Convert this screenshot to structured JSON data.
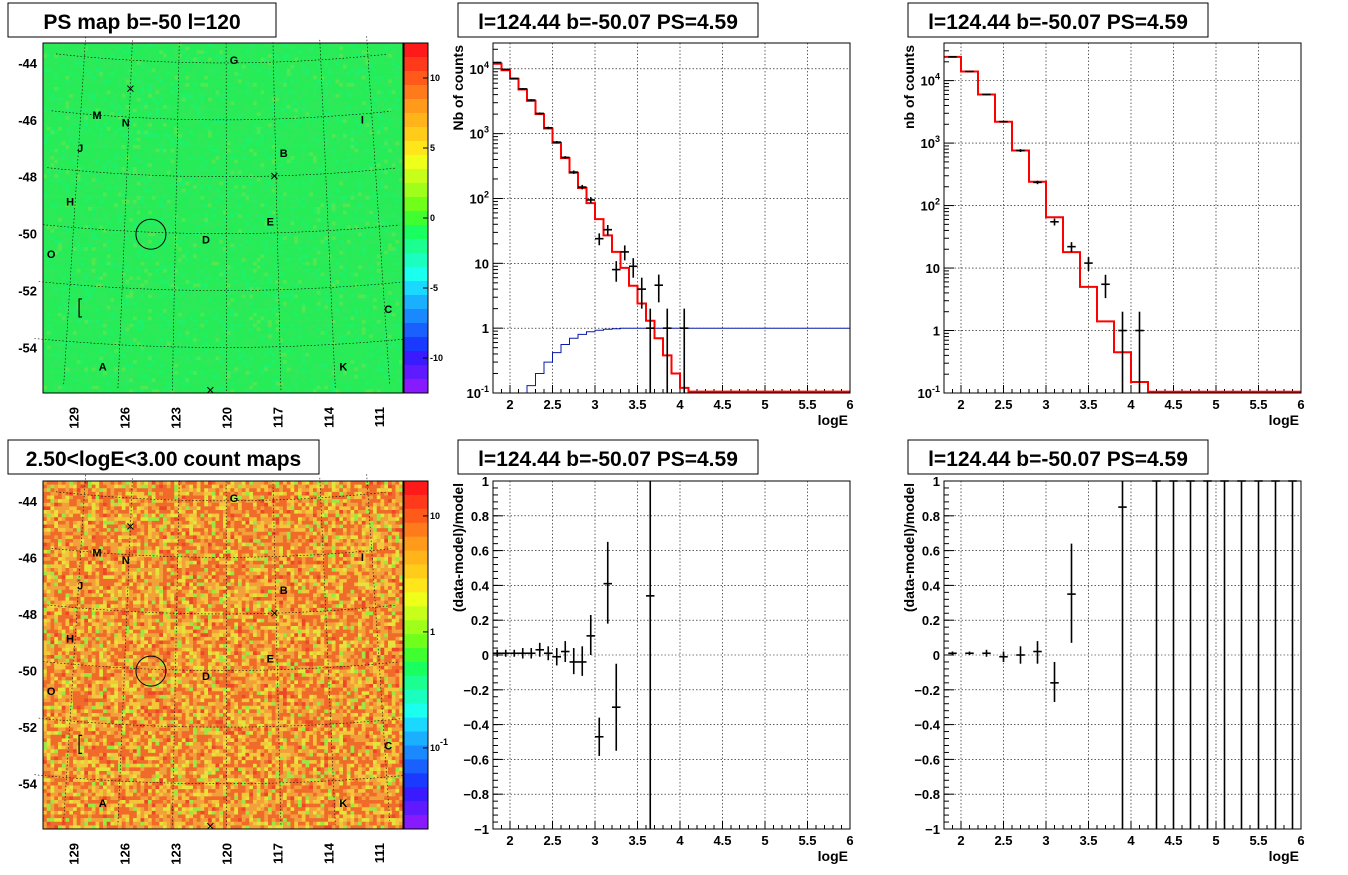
{
  "chart_data": [
    {
      "type": "heatmap",
      "title": "PS map b=-50 l=120",
      "ylabels": [
        "-44",
        "-46",
        "-48",
        "-50",
        "-52",
        "-54"
      ],
      "yvals": [
        -44,
        -46,
        -48,
        -50,
        -52,
        -54
      ],
      "xlabels": [
        "129",
        "126",
        "123",
        "120",
        "117",
        "114",
        "111"
      ],
      "xvals": [
        129,
        126,
        123,
        120,
        117,
        114,
        111
      ],
      "colorbar": {
        "labels": [
          "10",
          "5",
          "0",
          "-5",
          "-10"
        ],
        "values": [
          10,
          5,
          0,
          -5,
          -10
        ],
        "range": [
          -12.5,
          12.5
        ],
        "scale": "linear"
      },
      "base_color": "#22ee55",
      "sources": [
        {
          "name": "G",
          "l": 119.5,
          "b": -43.9
        },
        {
          "name": "M",
          "l": 128.0,
          "b": -46.0
        },
        {
          "name": "N",
          "l": 126.2,
          "b": -46.2
        },
        {
          "name": "I",
          "l": 111.6,
          "b": -46.2
        },
        {
          "name": "J",
          "l": 128.9,
          "b": -47.2
        },
        {
          "name": "B",
          "l": 116.5,
          "b": -47.2
        },
        {
          "name": "H",
          "l": 129.3,
          "b": -49.1
        },
        {
          "name": "E",
          "l": 117.4,
          "b": -49.6
        },
        {
          "name": "D",
          "l": 121.2,
          "b": -50.2
        },
        {
          "name": "O",
          "l": 130.2,
          "b": -51.0
        },
        {
          "name": "C",
          "l": 110.8,
          "b": -52.9
        },
        {
          "name": "A",
          "l": 126.9,
          "b": -54.8
        },
        {
          "name": "K",
          "l": 113.5,
          "b": -54.8
        }
      ]
    },
    {
      "type": "line",
      "title": "l=124.44 b=-50.07 PS=4.59",
      "xlabel": "logE",
      "ylabel": "Nb of counts",
      "xlim": [
        1.8,
        6
      ],
      "ylim": [
        0.1,
        25000
      ],
      "yscale": "log",
      "xticks": [
        "2",
        "2.5",
        "3",
        "3.5",
        "4",
        "4.5",
        "5",
        "5.5",
        "6"
      ],
      "yticks": [
        {
          "v": 0.1,
          "t": "10^-1"
        },
        {
          "v": 1,
          "t": "1"
        },
        {
          "v": 10,
          "t": "10"
        },
        {
          "v": 100,
          "t": "10^2"
        },
        {
          "v": 1000,
          "t": "10^3"
        },
        {
          "v": 10000,
          "t": "10^4"
        }
      ],
      "model": [
        {
          "x0": 1.8,
          "x1": 1.9,
          "y": 12000
        },
        {
          "x0": 1.9,
          "x1": 2.0,
          "y": 9500
        },
        {
          "x0": 2.0,
          "x1": 2.1,
          "y": 7000
        },
        {
          "x0": 2.1,
          "x1": 2.2,
          "y": 4800
        },
        {
          "x0": 2.2,
          "x1": 2.3,
          "y": 3200
        },
        {
          "x0": 2.3,
          "x1": 2.4,
          "y": 2000
        },
        {
          "x0": 2.4,
          "x1": 2.5,
          "y": 1200
        },
        {
          "x0": 2.5,
          "x1": 2.6,
          "y": 720
        },
        {
          "x0": 2.6,
          "x1": 2.7,
          "y": 420
        },
        {
          "x0": 2.7,
          "x1": 2.8,
          "y": 250
        },
        {
          "x0": 2.8,
          "x1": 2.9,
          "y": 145
        },
        {
          "x0": 2.9,
          "x1": 3.0,
          "y": 85
        },
        {
          "x0": 3.0,
          "x1": 3.1,
          "y": 48
        },
        {
          "x0": 3.1,
          "x1": 3.2,
          "y": 27
        },
        {
          "x0": 3.2,
          "x1": 3.3,
          "y": 15
        },
        {
          "x0": 3.3,
          "x1": 3.4,
          "y": 8.5
        },
        {
          "x0": 3.4,
          "x1": 3.5,
          "y": 4.5
        },
        {
          "x0": 3.5,
          "x1": 3.6,
          "y": 2.4
        },
        {
          "x0": 3.6,
          "x1": 3.7,
          "y": 1.3
        },
        {
          "x0": 3.7,
          "x1": 3.8,
          "y": 0.7
        },
        {
          "x0": 3.8,
          "x1": 3.9,
          "y": 0.38
        },
        {
          "x0": 3.9,
          "x1": 4.0,
          "y": 0.2
        },
        {
          "x0": 4.0,
          "x1": 4.1,
          "y": 0.12
        },
        {
          "x0": 4.1,
          "x1": 6.0,
          "y": 0.105
        }
      ],
      "efficiency": [
        {
          "x0": 1.8,
          "x1": 2.2,
          "y": 0.09
        },
        {
          "x0": 2.2,
          "x1": 2.3,
          "y": 0.13
        },
        {
          "x0": 2.3,
          "x1": 2.4,
          "y": 0.2
        },
        {
          "x0": 2.4,
          "x1": 2.5,
          "y": 0.3
        },
        {
          "x0": 2.5,
          "x1": 2.6,
          "y": 0.42
        },
        {
          "x0": 2.6,
          "x1": 2.7,
          "y": 0.56
        },
        {
          "x0": 2.7,
          "x1": 2.8,
          "y": 0.7
        },
        {
          "x0": 2.8,
          "x1": 2.9,
          "y": 0.8
        },
        {
          "x0": 2.9,
          "x1": 3.0,
          "y": 0.88
        },
        {
          "x0": 3.0,
          "x1": 3.1,
          "y": 0.93
        },
        {
          "x0": 3.1,
          "x1": 3.2,
          "y": 0.96
        },
        {
          "x0": 3.2,
          "x1": 3.3,
          "y": 0.98
        },
        {
          "x0": 3.3,
          "x1": 6.0,
          "y": 1.0
        }
      ],
      "data": [
        {
          "x": 1.85,
          "y": 12500,
          "ylo": 12200,
          "yhi": 12800
        },
        {
          "x": 1.95,
          "y": 9800,
          "ylo": 9600,
          "yhi": 10000
        },
        {
          "x": 2.05,
          "y": 7100,
          "ylo": 6950,
          "yhi": 7250
        },
        {
          "x": 2.15,
          "y": 4900,
          "ylo": 4780,
          "yhi": 5020
        },
        {
          "x": 2.25,
          "y": 3300,
          "ylo": 3200,
          "yhi": 3400
        },
        {
          "x": 2.35,
          "y": 2050,
          "ylo": 1980,
          "yhi": 2120
        },
        {
          "x": 2.45,
          "y": 1230,
          "ylo": 1180,
          "yhi": 1280
        },
        {
          "x": 2.55,
          "y": 740,
          "ylo": 710,
          "yhi": 770
        },
        {
          "x": 2.65,
          "y": 430,
          "ylo": 410,
          "yhi": 450
        },
        {
          "x": 2.75,
          "y": 255,
          "ylo": 240,
          "yhi": 270
        },
        {
          "x": 2.85,
          "y": 150,
          "ylo": 138,
          "yhi": 162
        },
        {
          "x": 2.95,
          "y": 95,
          "ylo": 85,
          "yhi": 105
        },
        {
          "x": 3.05,
          "y": 24,
          "ylo": 19,
          "yhi": 29
        },
        {
          "x": 3.15,
          "y": 33,
          "ylo": 27,
          "yhi": 39
        },
        {
          "x": 3.25,
          "y": 8,
          "ylo": 5.2,
          "yhi": 10.8
        },
        {
          "x": 3.35,
          "y": 15,
          "ylo": 11.1,
          "yhi": 18.9
        },
        {
          "x": 3.45,
          "y": 9,
          "ylo": 6,
          "yhi": 12
        },
        {
          "x": 3.55,
          "y": 4,
          "ylo": 2,
          "yhi": 6
        },
        {
          "x": 3.65,
          "y": 1,
          "ylo": 0.1,
          "yhi": 2
        },
        {
          "x": 3.75,
          "y": 4.6,
          "ylo": 2.5,
          "yhi": 6.7
        },
        {
          "x": 3.85,
          "y": 1,
          "ylo": 0.1,
          "yhi": 2
        },
        {
          "x": 4.05,
          "y": 1,
          "ylo": 0.1,
          "yhi": 2
        }
      ]
    },
    {
      "type": "line",
      "title": "l=124.44 b=-50.07 PS=4.59",
      "xlabel": "logE",
      "ylabel": "nb of counts",
      "xlim": [
        1.8,
        6
      ],
      "ylim": [
        0.1,
        40000
      ],
      "yscale": "log",
      "xticks": [
        "2",
        "2.5",
        "3",
        "3.5",
        "4",
        "4.5",
        "5",
        "5.5",
        "6"
      ],
      "yticks": [
        {
          "v": 0.1,
          "t": "10^-1"
        },
        {
          "v": 1,
          "t": "1"
        },
        {
          "v": 10,
          "t": "10"
        },
        {
          "v": 100,
          "t": "10^2"
        },
        {
          "v": 1000,
          "t": "10^3"
        },
        {
          "v": 10000,
          "t": "10^4"
        }
      ],
      "model": [
        {
          "x0": 1.8,
          "x1": 2.0,
          "y": 24000
        },
        {
          "x0": 2.0,
          "x1": 2.2,
          "y": 14000
        },
        {
          "x0": 2.2,
          "x1": 2.4,
          "y": 6000
        },
        {
          "x0": 2.4,
          "x1": 2.6,
          "y": 2200
        },
        {
          "x0": 2.6,
          "x1": 2.8,
          "y": 760
        },
        {
          "x0": 2.8,
          "x1": 3.0,
          "y": 240
        },
        {
          "x0": 3.0,
          "x1": 3.2,
          "y": 65
        },
        {
          "x0": 3.2,
          "x1": 3.4,
          "y": 18
        },
        {
          "x0": 3.4,
          "x1": 3.6,
          "y": 5
        },
        {
          "x0": 3.6,
          "x1": 3.8,
          "y": 1.4
        },
        {
          "x0": 3.8,
          "x1": 4.0,
          "y": 0.45
        },
        {
          "x0": 4.0,
          "x1": 4.2,
          "y": 0.15
        },
        {
          "x0": 4.2,
          "x1": 6.0,
          "y": 0.105
        }
      ],
      "efficiency": [],
      "data": [
        {
          "x": 1.9,
          "y": 24000,
          "ylo": 23600,
          "yhi": 24400
        },
        {
          "x": 2.1,
          "y": 14000,
          "ylo": 13700,
          "yhi": 14300
        },
        {
          "x": 2.3,
          "y": 6000,
          "ylo": 5850,
          "yhi": 6150
        },
        {
          "x": 2.5,
          "y": 2200,
          "ylo": 2130,
          "yhi": 2270
        },
        {
          "x": 2.7,
          "y": 760,
          "ylo": 720,
          "yhi": 800
        },
        {
          "x": 2.9,
          "y": 235,
          "ylo": 220,
          "yhi": 250
        },
        {
          "x": 3.1,
          "y": 55,
          "ylo": 48,
          "yhi": 62
        },
        {
          "x": 3.3,
          "y": 22,
          "ylo": 18,
          "yhi": 26
        },
        {
          "x": 3.5,
          "y": 12,
          "ylo": 9,
          "yhi": 15
        },
        {
          "x": 3.7,
          "y": 5.5,
          "ylo": 3.3,
          "yhi": 7.8
        },
        {
          "x": 3.9,
          "y": 1,
          "ylo": 0.1,
          "yhi": 2
        },
        {
          "x": 4.1,
          "y": 1,
          "ylo": 0.1,
          "yhi": 2
        }
      ]
    },
    {
      "type": "heatmap",
      "title": "2.50<logE<3.00 count maps",
      "ylabels": [
        "-44",
        "-46",
        "-48",
        "-50",
        "-52",
        "-54"
      ],
      "yvals": [
        -44,
        -46,
        -48,
        -50,
        -52,
        -54
      ],
      "xlabels": [
        "129",
        "126",
        "123",
        "120",
        "117",
        "114",
        "111"
      ],
      "xvals": [
        129,
        126,
        123,
        120,
        117,
        114,
        111
      ],
      "colorbar": {
        "labels": [
          "10",
          "1",
          "10^-1"
        ],
        "values": [
          10,
          1,
          0.1
        ],
        "range": [
          0.02,
          20
        ],
        "scale": "log"
      },
      "base_color": "#f0b040",
      "sources": [
        {
          "name": "G",
          "l": 119.5,
          "b": -43.9
        },
        {
          "name": "M",
          "l": 128.0,
          "b": -46.0
        },
        {
          "name": "N",
          "l": 126.2,
          "b": -46.2
        },
        {
          "name": "I",
          "l": 111.6,
          "b": -46.2
        },
        {
          "name": "J",
          "l": 128.9,
          "b": -47.2
        },
        {
          "name": "B",
          "l": 116.5,
          "b": -47.2
        },
        {
          "name": "H",
          "l": 129.3,
          "b": -49.1
        },
        {
          "name": "E",
          "l": 117.4,
          "b": -49.6
        },
        {
          "name": "D",
          "l": 121.2,
          "b": -50.2
        },
        {
          "name": "O",
          "l": 130.2,
          "b": -51.0
        },
        {
          "name": "C",
          "l": 110.8,
          "b": -52.9
        },
        {
          "name": "A",
          "l": 126.9,
          "b": -54.8
        },
        {
          "name": "K",
          "l": 113.5,
          "b": -54.8
        }
      ]
    },
    {
      "type": "scatter",
      "title": "l=124.44 b=-50.07 PS=4.59",
      "xlabel": "logE",
      "ylabel": "(data-model)/model",
      "xlim": [
        1.8,
        6
      ],
      "ylim": [
        -1,
        1
      ],
      "yscale": "linear",
      "xticks": [
        "2",
        "2.5",
        "3",
        "3.5",
        "4",
        "4.5",
        "5",
        "5.5",
        "6"
      ],
      "yticks": [
        {
          "v": -1,
          "t": "−1"
        },
        {
          "v": -0.8,
          "t": "−0.8"
        },
        {
          "v": -0.6,
          "t": "−0.6"
        },
        {
          "v": -0.4,
          "t": "−0.4"
        },
        {
          "v": -0.2,
          "t": "−0.2"
        },
        {
          "v": 0,
          "t": "0"
        },
        {
          "v": 0.2,
          "t": "0.2"
        },
        {
          "v": 0.4,
          "t": "0.4"
        },
        {
          "v": 0.6,
          "t": "0.6"
        },
        {
          "v": 0.8,
          "t": "0.8"
        },
        {
          "v": 1,
          "t": "1"
        }
      ],
      "data": [
        {
          "x": 1.85,
          "y": 0.01,
          "ylo": -0.01,
          "yhi": 0.03
        },
        {
          "x": 1.95,
          "y": 0.01,
          "ylo": -0.01,
          "yhi": 0.03
        },
        {
          "x": 2.05,
          "y": 0.01,
          "ylo": -0.01,
          "yhi": 0.03
        },
        {
          "x": 2.15,
          "y": 0.01,
          "ylo": -0.02,
          "yhi": 0.04
        },
        {
          "x": 2.25,
          "y": 0.01,
          "ylo": -0.02,
          "yhi": 0.04
        },
        {
          "x": 2.35,
          "y": 0.03,
          "ylo": -0.01,
          "yhi": 0.07
        },
        {
          "x": 2.45,
          "y": 0.01,
          "ylo": -0.03,
          "yhi": 0.05
        },
        {
          "x": 2.55,
          "y": -0.01,
          "ylo": -0.06,
          "yhi": 0.04
        },
        {
          "x": 2.65,
          "y": 0.02,
          "ylo": -0.04,
          "yhi": 0.08
        },
        {
          "x": 2.75,
          "y": -0.04,
          "ylo": -0.11,
          "yhi": 0.04
        },
        {
          "x": 2.85,
          "y": -0.04,
          "ylo": -0.12,
          "yhi": 0.05
        },
        {
          "x": 2.95,
          "y": 0.11,
          "ylo": 0.0,
          "yhi": 0.23
        },
        {
          "x": 3.05,
          "y": -0.47,
          "ylo": -0.58,
          "yhi": -0.36
        },
        {
          "x": 3.15,
          "y": 0.41,
          "ylo": 0.18,
          "yhi": 0.65
        },
        {
          "x": 3.25,
          "y": -0.3,
          "ylo": -0.55,
          "yhi": -0.05
        },
        {
          "x": 3.65,
          "y": 0.34,
          "ylo": -1.0,
          "yhi": 1.0
        }
      ]
    },
    {
      "type": "scatter",
      "title": "l=124.44 b=-50.07 PS=4.59",
      "xlabel": "logE",
      "ylabel": "(data-model)/model",
      "xlim": [
        1.8,
        6
      ],
      "ylim": [
        -1,
        1
      ],
      "yscale": "linear",
      "xticks": [
        "2",
        "2.5",
        "3",
        "3.5",
        "4",
        "4.5",
        "5",
        "5.5",
        "6"
      ],
      "yticks": [
        {
          "v": -1,
          "t": "−1"
        },
        {
          "v": -0.8,
          "t": "−0.8"
        },
        {
          "v": -0.6,
          "t": "−0.6"
        },
        {
          "v": -0.4,
          "t": "−0.4"
        },
        {
          "v": -0.2,
          "t": "−0.2"
        },
        {
          "v": 0,
          "t": "0"
        },
        {
          "v": 0.2,
          "t": "0.2"
        },
        {
          "v": 0.4,
          "t": "0.4"
        },
        {
          "v": 0.6,
          "t": "0.6"
        },
        {
          "v": 0.8,
          "t": "0.8"
        },
        {
          "v": 1,
          "t": "1"
        }
      ],
      "data": [
        {
          "x": 1.9,
          "y": 0.01,
          "ylo": 0.0,
          "yhi": 0.02
        },
        {
          "x": 2.1,
          "y": 0.01,
          "ylo": 0.0,
          "yhi": 0.02
        },
        {
          "x": 2.3,
          "y": 0.01,
          "ylo": -0.01,
          "yhi": 0.03
        },
        {
          "x": 2.5,
          "y": -0.01,
          "ylo": -0.04,
          "yhi": 0.02
        },
        {
          "x": 2.7,
          "y": 0.0,
          "ylo": -0.05,
          "yhi": 0.05
        },
        {
          "x": 2.9,
          "y": 0.02,
          "ylo": -0.05,
          "yhi": 0.08
        },
        {
          "x": 3.1,
          "y": -0.16,
          "ylo": -0.27,
          "yhi": -0.04
        },
        {
          "x": 3.3,
          "y": 0.35,
          "ylo": 0.07,
          "yhi": 0.64
        },
        {
          "x": 3.9,
          "y": 0.85,
          "ylo": -1.0,
          "yhi": 1.0
        },
        {
          "x": 4.3,
          "y": 1.0,
          "ylo": -1.0,
          "yhi": 1.0
        },
        {
          "x": 4.5,
          "y": 1.0,
          "ylo": -1.0,
          "yhi": 1.0
        },
        {
          "x": 4.7,
          "y": 1.0,
          "ylo": -1.0,
          "yhi": 1.0
        },
        {
          "x": 4.9,
          "y": 1.0,
          "ylo": -1.0,
          "yhi": 1.0
        },
        {
          "x": 5.1,
          "y": 1.0,
          "ylo": -1.0,
          "yhi": 1.0
        },
        {
          "x": 5.3,
          "y": 1.0,
          "ylo": -1.0,
          "yhi": 1.0
        },
        {
          "x": 5.5,
          "y": 1.0,
          "ylo": -1.0,
          "yhi": 1.0
        },
        {
          "x": 5.7,
          "y": 1.0,
          "ylo": -1.0,
          "yhi": 1.0
        },
        {
          "x": 5.9,
          "y": 1.0,
          "ylo": -1.0,
          "yhi": 1.0
        }
      ]
    }
  ]
}
